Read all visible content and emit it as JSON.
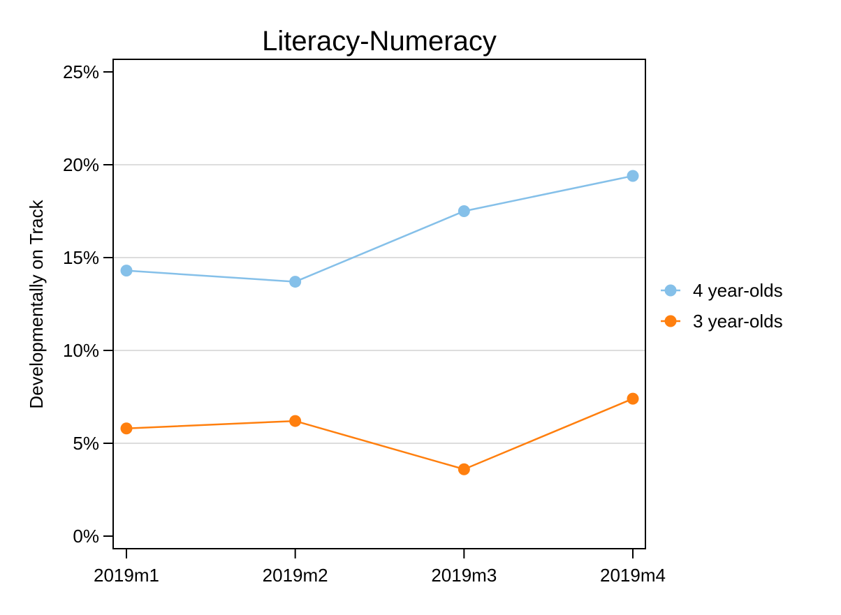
{
  "chart_data": {
    "type": "line",
    "title": "Literacy-Numeracy",
    "xlabel": "",
    "ylabel": "Developmentally on Track",
    "categories": [
      "2019m1",
      "2019m2",
      "2019m3",
      "2019m4"
    ],
    "yticks": [
      "0%",
      "5%",
      "10%",
      "15%",
      "20%",
      "25%"
    ],
    "ylim": [
      0,
      0.25
    ],
    "grid": true,
    "legend_position": "right",
    "series": [
      {
        "name": "4 year-olds",
        "color": "#85C0E9",
        "values": [
          0.143,
          0.137,
          0.175,
          0.194
        ]
      },
      {
        "name": "3 year-olds",
        "color": "#FF7F0E",
        "values": [
          0.058,
          0.062,
          0.036,
          0.074
        ]
      }
    ]
  }
}
